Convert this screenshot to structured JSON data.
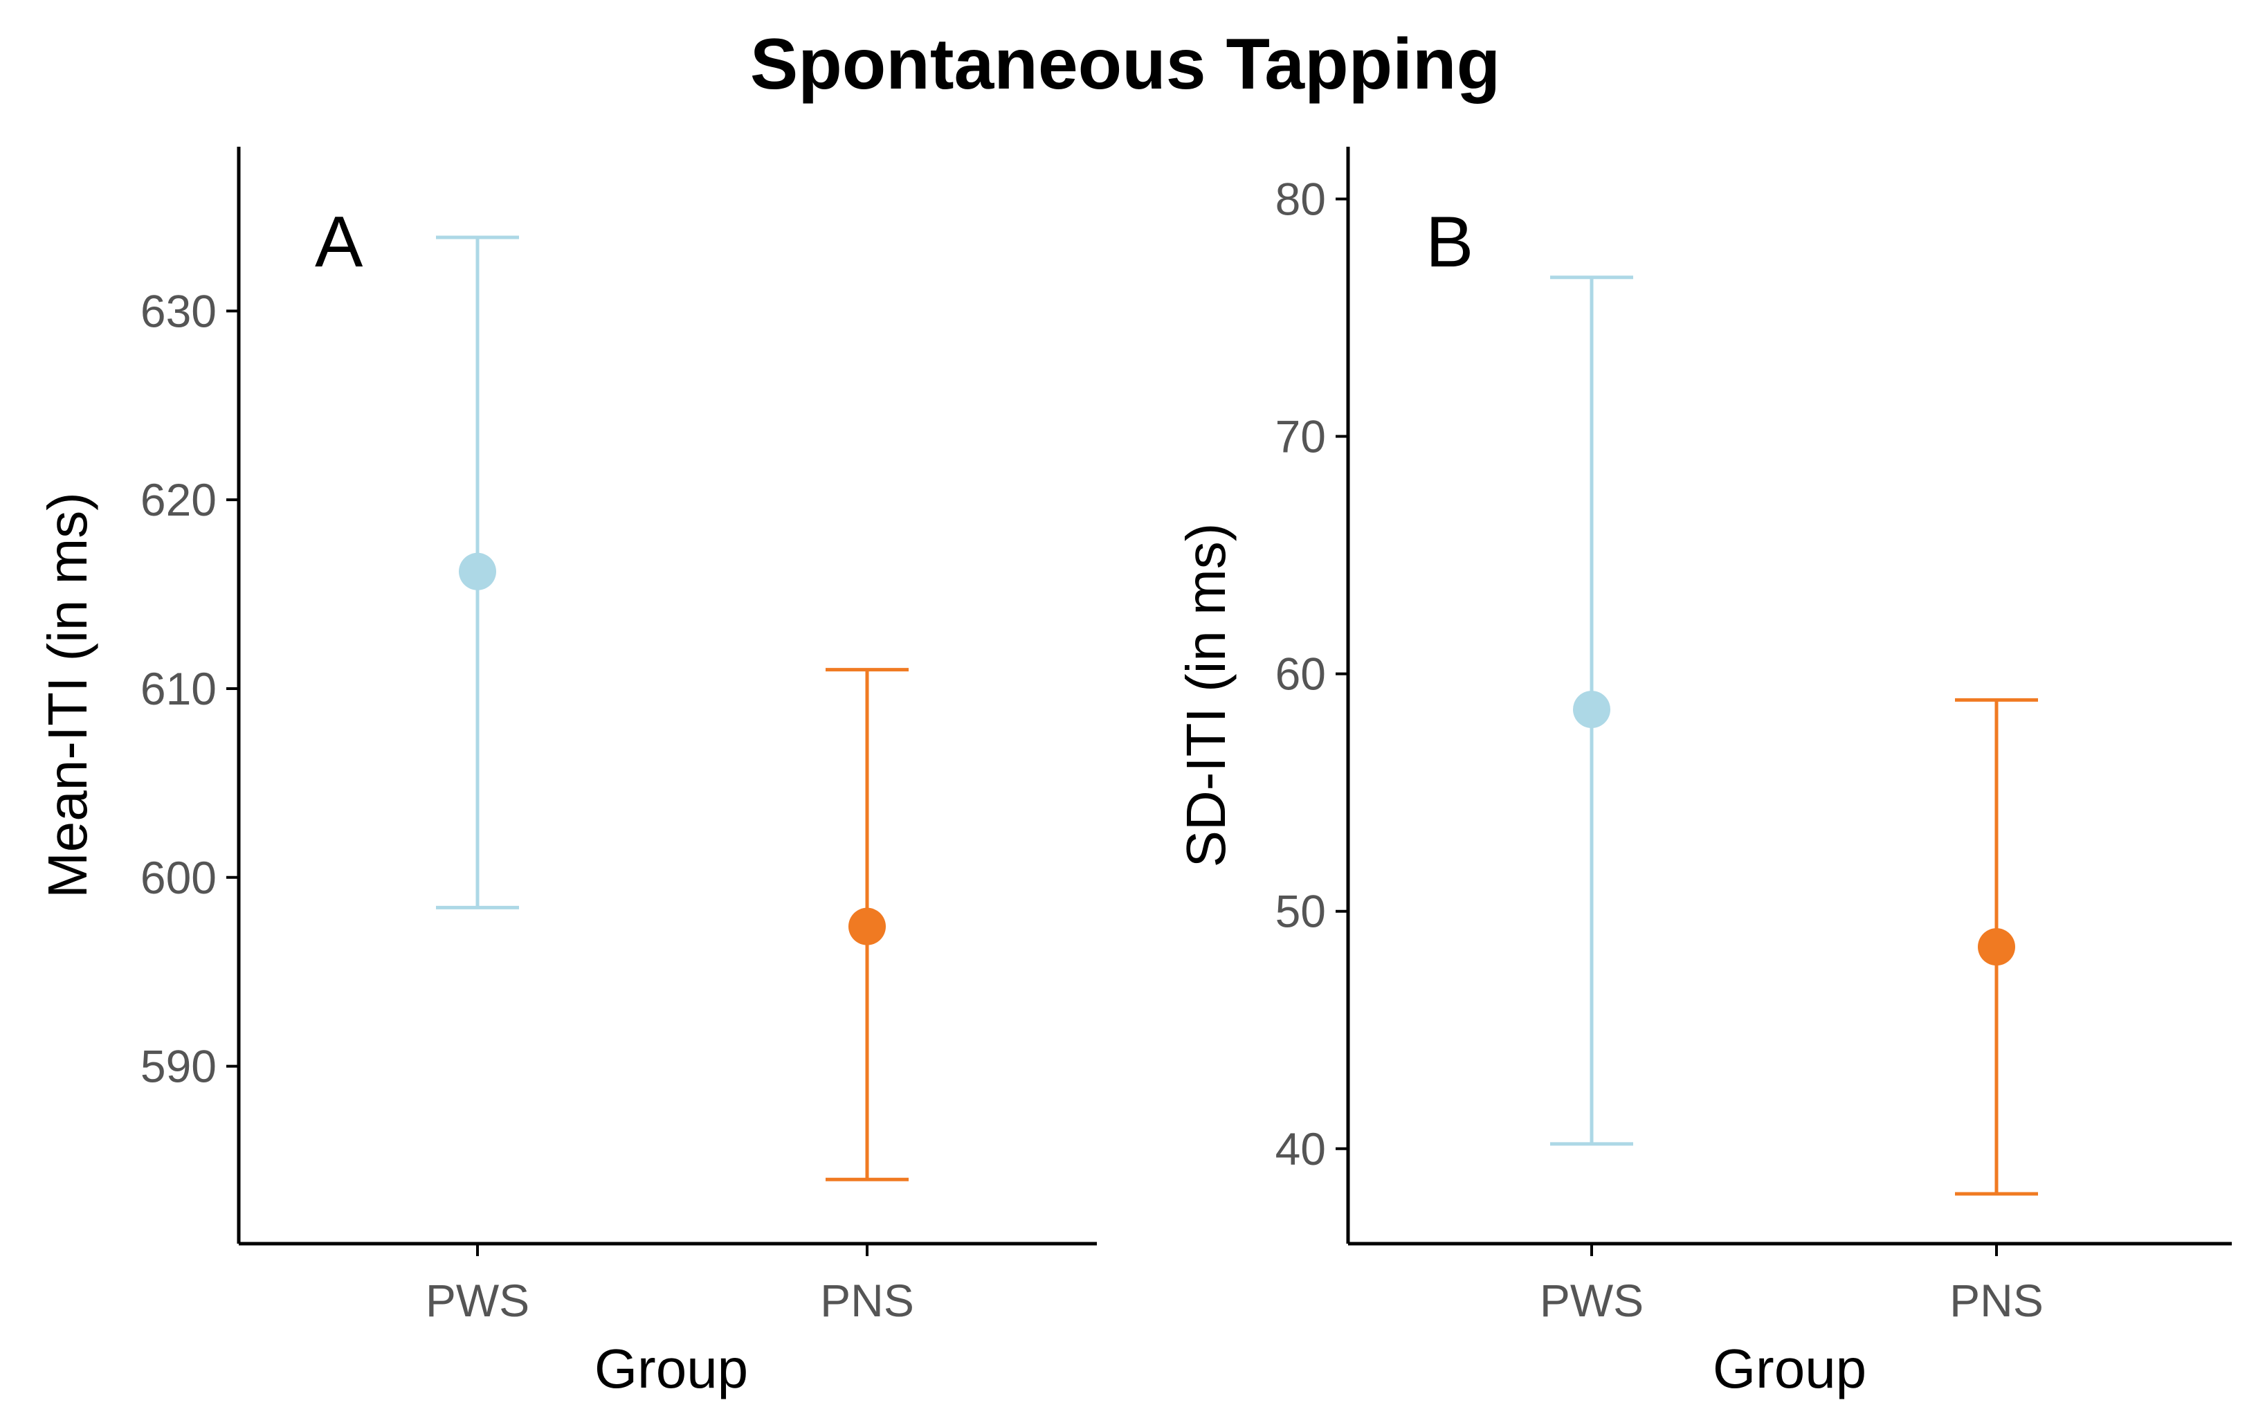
{
  "figure_title": "Spontaneous Tapping",
  "colors": {
    "PWS": "#add8e6",
    "PNS": "#f07a22"
  },
  "chart_data": [
    {
      "type": "scatter",
      "panel": "A",
      "title": "Spontaneous Tapping",
      "xlabel": "Group",
      "ylabel": "Mean-ITI (in ms)",
      "categories": [
        "PWS",
        "PNS"
      ],
      "yticks": [
        590,
        600,
        610,
        620,
        630
      ],
      "ylim": [
        580.6,
        638.7
      ],
      "points": [
        {
          "group": "PWS",
          "mean": 616.2,
          "lower": 598.4,
          "upper": 633.9
        },
        {
          "group": "PNS",
          "mean": 597.4,
          "lower": 584.0,
          "upper": 611.0
        }
      ]
    },
    {
      "type": "scatter",
      "panel": "B",
      "title": "Spontaneous Tapping",
      "xlabel": "Group",
      "ylabel": "SD-ITI (in ms)",
      "categories": [
        "PWS",
        "PNS"
      ],
      "yticks": [
        40,
        50,
        60,
        70,
        80
      ],
      "ylim": [
        36.0,
        82.2
      ],
      "points": [
        {
          "group": "PWS",
          "mean": 58.5,
          "lower": 40.2,
          "upper": 76.7
        },
        {
          "group": "PNS",
          "mean": 48.5,
          "lower": 38.1,
          "upper": 58.9
        }
      ]
    }
  ]
}
